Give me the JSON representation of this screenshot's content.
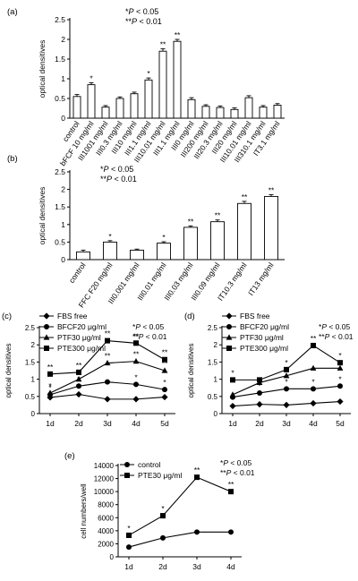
{
  "chart_data": [
    {
      "panel": "(a)",
      "type": "bar",
      "ylabel": "optical densitives",
      "ylim": [
        0,
        2.5
      ],
      "yticks": [
        "0",
        "0.5",
        "1",
        "1.5",
        "2",
        "2.5"
      ],
      "annotations": [
        "*P < 0.05",
        "**P < 0.01"
      ],
      "categories": [
        "control",
        "bFCF 10 mg/ml",
        "III1001 mg/ml",
        "III0.3 mg/ml",
        "III10 mg/ml",
        "III1.1 mg/ml",
        "III10.01 mg/ml",
        "III1.1 mg/ml",
        "III0 mg/ml",
        "III200 mg/ml",
        "III20.3 mg/ml",
        "III20 mg/ml",
        "III10.01 mg/ml",
        "III310.1 mg/ml",
        "IT3.1 mg/ml"
      ],
      "values": [
        0.55,
        0.85,
        0.28,
        0.5,
        0.62,
        0.97,
        1.7,
        1.95,
        0.47,
        0.3,
        0.27,
        0.22,
        0.52,
        0.28,
        0.33
      ],
      "errors": [
        0.05,
        0.05,
        0.04,
        0.04,
        0.04,
        0.05,
        0.06,
        0.05,
        0.05,
        0.04,
        0.04,
        0.04,
        0.05,
        0.04,
        0.04
      ],
      "marks": [
        "",
        "*",
        "",
        "",
        "",
        "*",
        "**",
        "**",
        "",
        "",
        "",
        "",
        "",
        "",
        ""
      ]
    },
    {
      "panel": "(b)",
      "type": "bar",
      "ylabel": "optical densitives",
      "ylim": [
        0,
        2.5
      ],
      "yticks": [
        "0",
        "0.5",
        "1",
        "1.5",
        "2",
        "2.5"
      ],
      "annotations": [
        "*P < 0.05",
        "**P < 0.01"
      ],
      "categories": [
        "control",
        "FFC F20 mg/ml",
        "III0.001 mg/ml",
        "III0.01 mg/ml",
        "III0.03 mg/ml",
        "III0.09 mg/ml",
        "IT10.3 mg/ml",
        "IT13 mg/ml"
      ],
      "values": [
        0.22,
        0.5,
        0.27,
        0.47,
        0.92,
        1.08,
        1.6,
        1.8
      ],
      "errors": [
        0.05,
        0.04,
        0.03,
        0.04,
        0.04,
        0.05,
        0.06,
        0.05
      ],
      "marks": [
        "",
        "*",
        "",
        "*",
        "**",
        "**",
        "**",
        "**"
      ]
    },
    {
      "panel": "(c)",
      "type": "line",
      "ylabel": "optical densitives",
      "ylim": [
        0,
        2.5
      ],
      "yticks": [
        "0",
        "0.5",
        "1",
        "1.5",
        "2",
        "2.5"
      ],
      "annotations": [
        "*P < 0.05",
        "**P < 0.01"
      ],
      "x": [
        "1d",
        "2d",
        "3d",
        "4d",
        "5d"
      ],
      "series": [
        {
          "name": "FBS free",
          "marker": "diamond",
          "values": [
            0.47,
            0.56,
            0.42,
            0.42,
            0.48
          ]
        },
        {
          "name": "BFCF20 μg/ml",
          "marker": "circle",
          "values": [
            0.55,
            0.8,
            0.92,
            0.85,
            0.7
          ]
        },
        {
          "name": "PTF30 μg/ml",
          "marker": "triangle",
          "values": [
            0.6,
            1.0,
            1.47,
            1.52,
            1.25
          ]
        },
        {
          "name": "PTE300 μg/ml",
          "marker": "square",
          "values": [
            1.15,
            1.2,
            2.12,
            2.05,
            1.57
          ]
        }
      ],
      "point_marks": [
        {
          "series": 1,
          "x": 0,
          "text": "*"
        },
        {
          "series": 2,
          "x": 0,
          "text": "*"
        },
        {
          "series": 3,
          "x": 0,
          "text": "**"
        },
        {
          "series": 1,
          "x": 1,
          "text": "*"
        },
        {
          "series": 2,
          "x": 1,
          "text": "**"
        },
        {
          "series": 3,
          "x": 1,
          "text": "**"
        },
        {
          "series": 2,
          "x": 2,
          "text": "**"
        },
        {
          "series": 3,
          "x": 2,
          "text": "**"
        },
        {
          "series": 1,
          "x": 3,
          "text": "*"
        },
        {
          "series": 2,
          "x": 3,
          "text": "**"
        },
        {
          "series": 3,
          "x": 3,
          "text": "**"
        },
        {
          "series": 1,
          "x": 4,
          "text": "*"
        },
        {
          "series": 2,
          "x": 4,
          "text": "**"
        },
        {
          "series": 3,
          "x": 4,
          "text": "**"
        }
      ]
    },
    {
      "panel": "(d)",
      "type": "line",
      "ylabel": "optical densitives",
      "ylim": [
        0,
        2.5
      ],
      "yticks": [
        "0",
        "0.5",
        "1",
        "1.5",
        "2",
        "2.5"
      ],
      "annotations": [
        "*P < 0.05",
        "**P < 0.01"
      ],
      "x": [
        "1d",
        "2d",
        "3d",
        "4d",
        "5d"
      ],
      "series": [
        {
          "name": "FBS free",
          "marker": "diamond",
          "values": [
            0.22,
            0.27,
            0.25,
            0.3,
            0.35
          ]
        },
        {
          "name": "BFCF20 μg/ml",
          "marker": "circle",
          "values": [
            0.48,
            0.6,
            0.72,
            0.72,
            0.8
          ]
        },
        {
          "name": "PTF30 μg/ml",
          "marker": "triangle",
          "values": [
            0.55,
            0.9,
            1.1,
            1.32,
            1.32
          ]
        },
        {
          "name": "PTE300 μg/ml",
          "marker": "square",
          "values": [
            0.98,
            0.98,
            1.28,
            1.98,
            1.48
          ]
        }
      ],
      "point_marks": [
        {
          "series": 3,
          "x": 0,
          "text": "*"
        },
        {
          "series": 1,
          "x": 1,
          "text": "*"
        },
        {
          "series": 1,
          "x": 2,
          "text": "*"
        },
        {
          "series": 3,
          "x": 2,
          "text": "*"
        },
        {
          "series": 1,
          "x": 3,
          "text": "*"
        },
        {
          "series": 3,
          "x": 3,
          "text": "**"
        },
        {
          "series": 1,
          "x": 4,
          "text": "*"
        },
        {
          "series": 3,
          "x": 4,
          "text": "*"
        }
      ]
    },
    {
      "panel": "(e)",
      "type": "line",
      "ylabel": "cell numbers/well",
      "ylim": [
        0,
        14000
      ],
      "yticks": [
        "0",
        "2000",
        "4000",
        "6000",
        "8000",
        "10000",
        "12000",
        "14000"
      ],
      "annotations": [
        "*P < 0.05",
        "**P < 0.01"
      ],
      "x": [
        "1d",
        "2d",
        "3d",
        "4d"
      ],
      "series": [
        {
          "name": "control",
          "marker": "circle",
          "values": [
            1500,
            2900,
            3800,
            3800
          ]
        },
        {
          "name": "PTE30 μg/ml",
          "marker": "square",
          "values": [
            3300,
            6300,
            12200,
            10000
          ]
        }
      ],
      "point_marks": [
        {
          "series": 1,
          "x": 0,
          "text": "*"
        },
        {
          "series": 1,
          "x": 1,
          "text": "*"
        },
        {
          "series": 1,
          "x": 2,
          "text": "**"
        },
        {
          "series": 1,
          "x": 3,
          "text": "**"
        }
      ]
    }
  ]
}
